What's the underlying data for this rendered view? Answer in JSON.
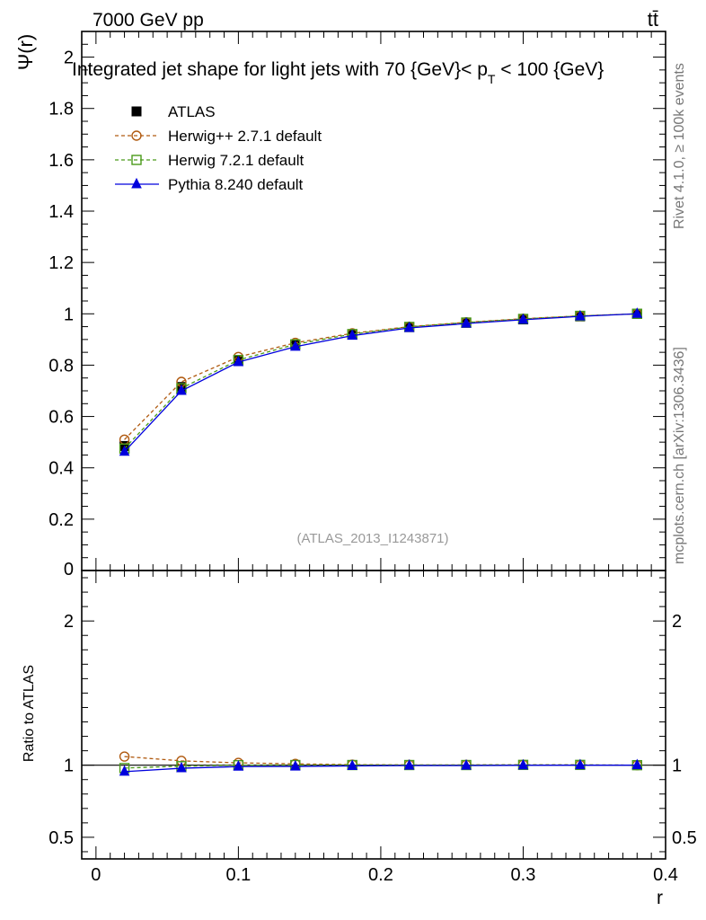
{
  "header": {
    "energy_label": "7000 GeV pp",
    "process_label": "tt̄",
    "title_main": "Integrated jet shape for light jets with 70 {GeV}< p",
    "title_sub": "T",
    "title_end": " < 100 {GeV}",
    "analysis_id": "(ATLAS_2013_I1243871)",
    "side_rivet": "Rivet 4.1.0, ≥ 100k events",
    "side_mcplots": "mcplots.cern.ch [arXiv:1306.3436]"
  },
  "chart_data": [
    {
      "type": "line",
      "panel": "main",
      "ylabel": "Ψ(r)",
      "xlabel": "",
      "xlim": [
        -0.01,
        0.4
      ],
      "ylim": [
        0,
        2.1
      ],
      "x_ticks": [
        0,
        0.1,
        0.2,
        0.3,
        0.4
      ],
      "y_ticks": [
        0.2,
        0.4,
        0.6,
        0.8,
        1,
        1.2,
        1.4,
        1.6,
        1.8,
        2
      ],
      "y_tick_labels": [
        "0.2",
        "0.4",
        "0.6",
        "0.8",
        "1",
        "1.2",
        "1.4",
        "1.6",
        "1.8",
        "2"
      ],
      "zero_label": "0",
      "x": [
        0.02,
        0.06,
        0.1,
        0.14,
        0.18,
        0.22,
        0.26,
        0.3,
        0.34,
        0.38
      ],
      "series": [
        {
          "name": "ATLAS",
          "color": "#000000",
          "marker": "square-filled",
          "line": "none",
          "values": [
            0.485,
            0.715,
            0.82,
            0.88,
            0.92,
            0.948,
            0.965,
            0.978,
            0.99,
            1.0
          ]
        },
        {
          "name": "Herwig++ 2.7.1 default",
          "color": "#b05a10",
          "marker": "circle-open",
          "line": "dashed",
          "values": [
            0.51,
            0.735,
            0.832,
            0.887,
            0.924,
            0.95,
            0.967,
            0.981,
            0.992,
            1.0
          ]
        },
        {
          "name": "Herwig 7.2.1 default",
          "color": "#4a9a1a",
          "marker": "square-open",
          "line": "dashed",
          "values": [
            0.475,
            0.71,
            0.82,
            0.881,
            0.921,
            0.949,
            0.966,
            0.98,
            0.992,
            1.0
          ]
        },
        {
          "name": "Pythia 8.240 default",
          "color": "#0000dd",
          "marker": "triangle-filled",
          "line": "solid",
          "values": [
            0.463,
            0.7,
            0.812,
            0.872,
            0.915,
            0.945,
            0.962,
            0.977,
            0.99,
            1.0
          ]
        }
      ]
    },
    {
      "type": "line",
      "panel": "ratio",
      "ylabel": "Ratio to ATLAS",
      "xlabel": "r",
      "xlim": [
        -0.01,
        0.4
      ],
      "ylim": [
        0.35,
        2.35
      ],
      "x_ticks": [
        0,
        0.1,
        0.2,
        0.3,
        0.4
      ],
      "x_tick_labels": [
        "0",
        "0.1",
        "0.2",
        "0.3",
        "0.4"
      ],
      "y_ticks": [
        0.5,
        1,
        2
      ],
      "y_tick_labels": [
        "0.5",
        "1",
        "2"
      ],
      "x": [
        0.02,
        0.06,
        0.1,
        0.14,
        0.18,
        0.22,
        0.26,
        0.3,
        0.34,
        0.38
      ],
      "series": [
        {
          "name": "Herwig++ 2.7.1 default",
          "color": "#b05a10",
          "marker": "circle-open",
          "line": "dashed",
          "values": [
            1.06,
            1.03,
            1.016,
            1.009,
            1.004,
            1.002,
            1.002,
            1.003,
            1.002,
            1.0
          ]
        },
        {
          "name": "Herwig 7.2.1 default",
          "color": "#4a9a1a",
          "marker": "square-open",
          "line": "dashed",
          "values": [
            0.98,
            0.993,
            1.0,
            1.001,
            1.001,
            1.001,
            1.001,
            1.002,
            1.002,
            1.0
          ]
        },
        {
          "name": "Pythia 8.240 default",
          "color": "#0000dd",
          "marker": "triangle-filled",
          "line": "solid",
          "values": [
            0.955,
            0.979,
            0.99,
            0.991,
            0.995,
            0.997,
            0.997,
            0.999,
            1.0,
            1.0
          ]
        }
      ]
    }
  ]
}
